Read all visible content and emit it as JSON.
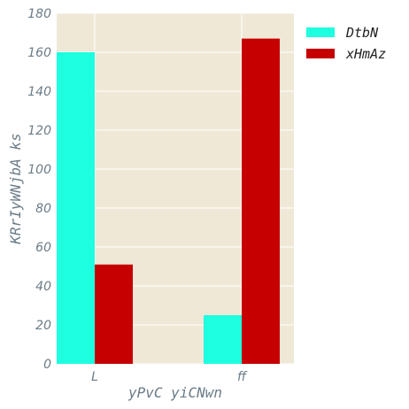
{
  "chart_data": {
    "type": "bar",
    "categories": [
      "L",
      "ff"
    ],
    "series": [
      {
        "name": "DtbN",
        "values": [
          160,
          25
        ],
        "color": "#1effe0"
      },
      {
        "name": "xHmAz",
        "values": [
          51,
          167
        ],
        "color": "#c60000"
      }
    ],
    "xlabel": "yPvC yiCNwn",
    "ylabel": "KRrIyWNjbA ks",
    "ylim": [
      0,
      180
    ],
    "yticks": [
      0,
      20,
      40,
      60,
      80,
      100,
      120,
      140,
      160,
      180
    ],
    "grid": true,
    "legend_position": "top-right-outside",
    "background_color": "#efe8d6",
    "text_color": "#6b7c88"
  }
}
